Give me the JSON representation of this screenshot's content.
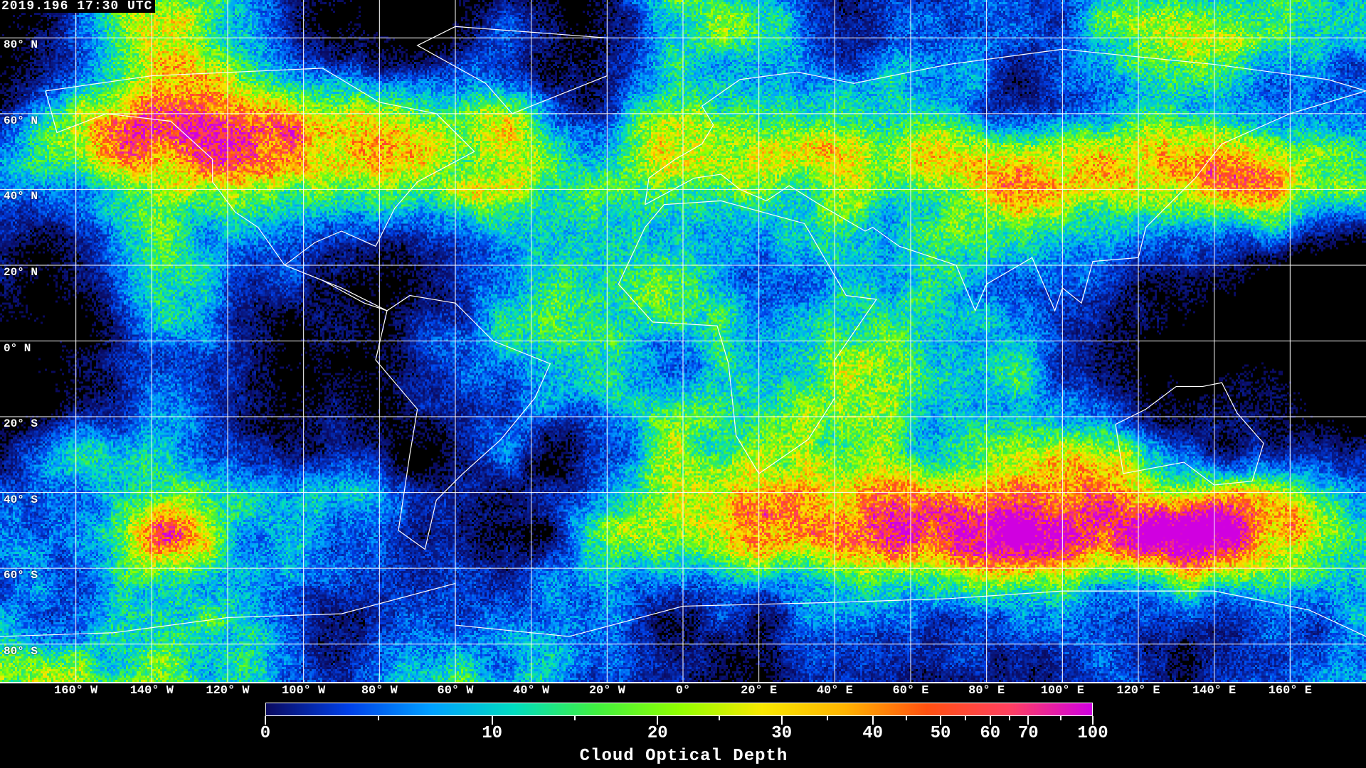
{
  "title": "2019.196 17:30 UTC",
  "map": {
    "projection": "equirectangular",
    "variable": "cloud optical depth",
    "gridline_color": "#ffffff",
    "coastline_color": "#ffffff",
    "clear_sky_color": "#000000",
    "lat_labels": [
      "80° N",
      "60° N",
      "40° N",
      "20° N",
      "0° N",
      "20° S",
      "40° S",
      "60° S",
      "80° S"
    ],
    "lat_values": [
      80,
      60,
      40,
      20,
      0,
      -20,
      -40,
      -60,
      -80
    ],
    "lon_labels": [
      "160° W",
      "140° W",
      "120° W",
      "100° W",
      "80° W",
      "60° W",
      "40° W",
      "20° W",
      "0°",
      "20° E",
      "40° E",
      "60° E",
      "80° E",
      "100° E",
      "120° E",
      "140° E",
      "160° E"
    ],
    "lon_values": [
      -160,
      -140,
      -120,
      -100,
      -80,
      -60,
      -40,
      -20,
      0,
      20,
      40,
      60,
      80,
      100,
      120,
      140,
      160
    ]
  },
  "colorbar": {
    "title": "Cloud Optical Depth",
    "tick_labels": [
      "0",
      "10",
      "20",
      "30",
      "40",
      "50",
      "60",
      "70",
      "100"
    ],
    "tick_values": [
      0,
      10,
      20,
      30,
      40,
      50,
      60,
      70,
      100
    ],
    "range": [
      0,
      100
    ],
    "colors": [
      "#0a0a5e",
      "#0040e8",
      "#00a0ff",
      "#00dcc0",
      "#40f040",
      "#90ff00",
      "#f8e800",
      "#ffb400",
      "#ff5010",
      "#ff4060",
      "#d000e0"
    ]
  }
}
